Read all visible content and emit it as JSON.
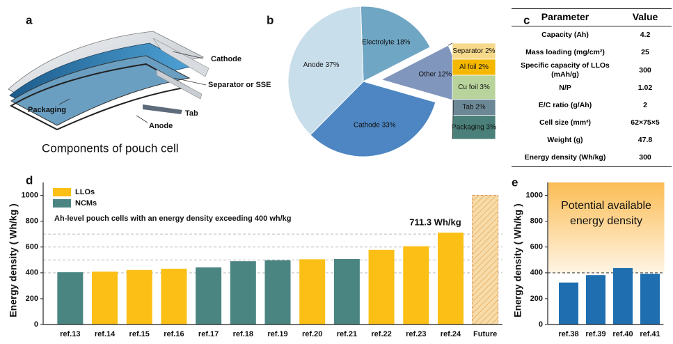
{
  "diagram": {
    "label": "a",
    "title": "Components of pouch cell",
    "parts": [
      "Cathode",
      "Separator or SSE",
      "Tab",
      "Packaging",
      "Anode"
    ]
  },
  "table": {
    "label": "c",
    "columns": [
      "Parameter",
      "Value"
    ],
    "rows": [
      [
        "Capacity (Ah)",
        "4.2"
      ],
      [
        "Mass loading (mg/cm²)",
        "25"
      ],
      [
        "Specific capacity of LLOs (mAh/g)",
        "300"
      ],
      [
        "N/P",
        "1.02"
      ],
      [
        "E/C ratio (g/Ah)",
        "2"
      ],
      [
        "Cell size (mm³)",
        "62×75×5"
      ],
      [
        "Weight (g)",
        "47.8"
      ],
      [
        "Energy density (Wh/kg)",
        "300"
      ]
    ]
  },
  "chart_data": [
    {
      "label": "b",
      "type": "pie",
      "values": [
        18,
        12,
        33,
        37
      ],
      "value_labels": [
        "Electrolyte 18%",
        "Other 12%",
        "Cathode 33%",
        "Anode 37%"
      ],
      "colors": [
        "#6fa6c4",
        "#8196bd",
        "#4d86c2",
        "#c8deeb"
      ],
      "exploded": [
        false,
        true,
        false,
        false
      ],
      "breakdown": {
        "values": [
          2,
          2,
          3,
          2,
          3
        ],
        "value_labels": [
          "Separator 2%",
          "Al foil 2%",
          "Cu foil 3%",
          "Tab 2%",
          "Packaging 3%"
        ],
        "colors": [
          "#f7d98b",
          "#f5b800",
          "#b8d49c",
          "#6c8896",
          "#4b7f79"
        ]
      }
    },
    {
      "label": "d",
      "type": "bar",
      "categories": [
        "ref.13",
        "ref.14",
        "ref.15",
        "ref.16",
        "ref.17",
        "ref.18",
        "ref.19",
        "ref.20",
        "ref.21",
        "ref.22",
        "ref.23",
        "ref.24",
        "Future"
      ],
      "values": [
        405,
        410,
        422,
        432,
        442,
        490,
        498,
        505,
        507,
        578,
        606,
        711.3,
        1000
      ],
      "value_labels": [
        null,
        null,
        null,
        null,
        null,
        null,
        null,
        null,
        null,
        null,
        null,
        "711.3 Wh/kg",
        null
      ],
      "colors": [
        "#4a8582",
        "#fbbf16",
        "#fbbf16",
        "#fbbf16",
        "#4a8582",
        "#4a8582",
        "#4a8582",
        "#fbbf16",
        "#4a8582",
        "#fbbf16",
        "#fbbf16",
        "#fbbf16",
        "#f7d9a3"
      ],
      "hatched": [
        false,
        false,
        false,
        false,
        false,
        false,
        false,
        false,
        false,
        false,
        false,
        false,
        true
      ],
      "legend": [
        {
          "name": "LLOs",
          "color": "#fbbf16"
        },
        {
          "name": "NCMs",
          "color": "#4a8582"
        }
      ],
      "legend_position": "upper left",
      "annotation": "Ah-level pouch cells with an energy density exceeding 400 wh/kg",
      "ylabel": "Energy density ( Wh/kg )",
      "ylim": [
        0,
        1100
      ],
      "yticks": [
        0,
        200,
        400,
        600,
        800,
        1000
      ],
      "reference_lines": [
        400,
        500,
        600,
        700
      ]
    },
    {
      "label": "e",
      "type": "bar",
      "categories": [
        "ref.38",
        "ref.39",
        "ref.40",
        "ref.41"
      ],
      "values": [
        325,
        382,
        437,
        393
      ],
      "color": "#1f6fb0",
      "annotation": "Potential available energy density",
      "ylabel": "Energy density ( Wh/kg )",
      "ylim": [
        0,
        1100
      ],
      "yticks": [
        0,
        200,
        400,
        600,
        800,
        1000
      ],
      "reference_lines": [
        400
      ]
    }
  ]
}
